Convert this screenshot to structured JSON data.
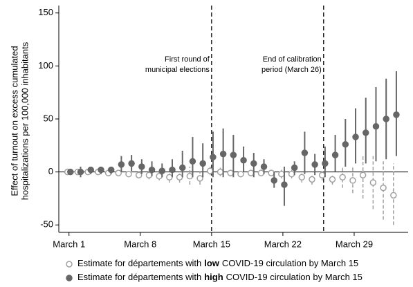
{
  "chart_data": {
    "type": "errorbar",
    "ylabel": [
      "Effect of turnout on excess cumulated",
      "hospitalizations per 100,000 inhabitants"
    ],
    "x": [
      1,
      2,
      3,
      4,
      5,
      6,
      7,
      8,
      9,
      10,
      11,
      12,
      13,
      14,
      15,
      16,
      17,
      18,
      19,
      20,
      21,
      22,
      23,
      24,
      25,
      26,
      27,
      28,
      29,
      30,
      31,
      32,
      33
    ],
    "xlim": [
      0,
      34.3
    ],
    "xticks": [
      {
        "value": 1,
        "label": "March 1"
      },
      {
        "value": 8,
        "label": "March 8"
      },
      {
        "value": 15,
        "label": "March 15"
      },
      {
        "value": 22,
        "label": "March 22"
      },
      {
        "value": 29,
        "label": "March 29"
      }
    ],
    "ylim": [
      -57,
      157
    ],
    "yticks": [
      -50,
      0,
      50,
      100,
      150
    ],
    "vlines": [
      15,
      26
    ],
    "annotations": [
      [
        "First round of",
        "municipal elections"
      ],
      [
        "End of calibration",
        "period (March 26)"
      ]
    ],
    "series": [
      {
        "name": [
          "Estimate for départements with",
          "low",
          "COVID-19 circulation by March 15"
        ],
        "color": "#a0a0a0",
        "marker": "hollow",
        "values": [
          0,
          0,
          0,
          0,
          -1,
          -1,
          -2,
          -3,
          -3,
          -4,
          -5,
          -5,
          -4,
          -6,
          1,
          0,
          -1,
          -2,
          -1,
          -1,
          -1,
          -2,
          -2,
          -5,
          -7,
          -3,
          -7,
          -5,
          -8,
          -3,
          -10,
          -15,
          -22
        ],
        "lower": [
          0,
          -3,
          -2,
          -2,
          -3,
          -4,
          -5,
          -6,
          -7,
          -8,
          -10,
          -10,
          -12,
          -12,
          -3,
          -4,
          -4,
          -5,
          -4,
          -4,
          -4,
          -6,
          -6,
          -10,
          -12,
          -8,
          -12,
          -15,
          -20,
          -25,
          -35,
          -45,
          -50
        ],
        "upper": [
          0,
          3,
          2,
          2,
          1,
          2,
          1,
          0,
          1,
          0,
          0,
          0,
          5,
          0,
          5,
          4,
          2,
          1,
          2,
          2,
          2,
          2,
          2,
          0,
          -2,
          2,
          -2,
          5,
          5,
          15,
          15,
          10,
          8
        ]
      },
      {
        "name": [
          "Estimate for départements with",
          "high",
          "COVID-19 circulation by March 15"
        ],
        "color": "#666666",
        "marker": "filled",
        "values": [
          0,
          0,
          2,
          2,
          2,
          7,
          8,
          5,
          2,
          1,
          2,
          4,
          10,
          8,
          14,
          17,
          16,
          11,
          8,
          5,
          -8,
          -12,
          4,
          18,
          7,
          8,
          16,
          26,
          33,
          37,
          43,
          50,
          54
        ],
        "lower": [
          0,
          -5,
          -2,
          -2,
          -2,
          0,
          1,
          -2,
          -4,
          -5,
          -5,
          -5,
          -5,
          -5,
          -5,
          -5,
          -5,
          0,
          -5,
          -2,
          -15,
          -32,
          -3,
          -2,
          -3,
          -5,
          0,
          5,
          8,
          8,
          10,
          12,
          15
        ],
        "upper": [
          0,
          5,
          5,
          5,
          5,
          15,
          16,
          12,
          10,
          8,
          12,
          20,
          33,
          27,
          38,
          41,
          35,
          24,
          18,
          12,
          0,
          5,
          10,
          38,
          17,
          24,
          35,
          50,
          60,
          70,
          80,
          88,
          95
        ]
      }
    ]
  }
}
